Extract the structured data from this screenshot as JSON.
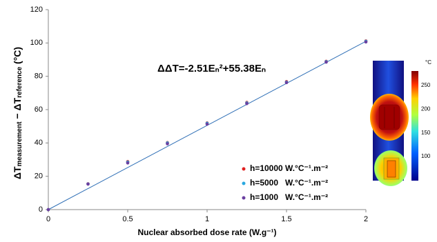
{
  "chart_data": {
    "type": "scatter",
    "equation": "ΔΔT=-2.51Eₙ²+55.38Eₙ",
    "x_label": "Nuclear absorbed dose rate (W.g⁻¹)",
    "y_label": [
      "ΔT",
      "measurement",
      " − ΔT",
      "reference",
      " (°C)"
    ],
    "x": [
      0,
      0.25,
      0.5,
      0.75,
      1,
      1.25,
      1.5,
      1.75,
      2
    ],
    "series": [
      {
        "name": "h=10000 W.°C⁻¹.m⁻²",
        "color": "#e02020",
        "values": [
          0,
          15.5,
          28.8,
          40.2,
          52,
          64.3,
          76.8,
          89,
          101.2
        ]
      },
      {
        "name": "h=5000   W.°C⁻¹.m⁻²",
        "color": "#2aa8e0",
        "values": [
          0,
          15.4,
          28.5,
          40,
          51.8,
          64,
          76.5,
          88.8,
          101
        ]
      },
      {
        "name": "h=1000   W.°C⁻¹.m⁻²",
        "color": "#6a3fa0",
        "values": [
          0,
          15.3,
          28,
          39.5,
          51.3,
          63.6,
          76.2,
          88.5,
          100.6
        ]
      }
    ],
    "fit_line": {
      "color": "#2f6fb6",
      "x": [
        0,
        2
      ],
      "values": [
        0,
        101
      ]
    },
    "xlim": [
      0,
      2
    ],
    "xticks": [
      0,
      0.5,
      1,
      1.5,
      2
    ],
    "ylim": [
      0,
      120
    ],
    "yticks": [
      0,
      20,
      40,
      60,
      80,
      100,
      120
    ],
    "inset": {
      "unit": "°C",
      "colorbar_ticks": [
        250,
        200,
        150,
        100
      ]
    }
  }
}
